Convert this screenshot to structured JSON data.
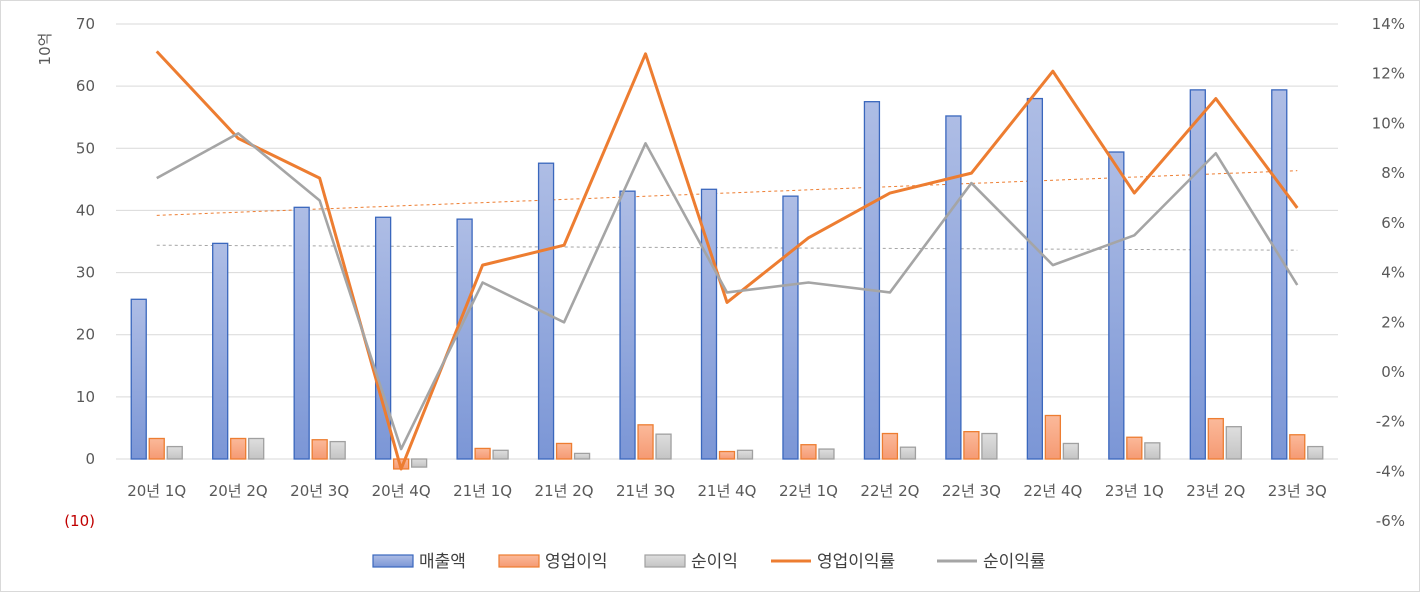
{
  "chart_data": {
    "type": "bar",
    "title": "",
    "ylabel": "10억",
    "categories": [
      "20년 1Q",
      "20년 2Q",
      "20년 3Q",
      "20년 4Q",
      "21년 1Q",
      "21년 2Q",
      "21년 3Q",
      "21년 4Q",
      "22년 1Q",
      "22년 2Q",
      "22년 3Q",
      "22년 4Q",
      "23년 1Q",
      "23년 2Q",
      "23년 3Q"
    ],
    "ylim": [
      -10,
      70
    ],
    "y_ticks": [
      "(10)",
      "0",
      "10",
      "20",
      "30",
      "40",
      "50",
      "60",
      "70"
    ],
    "y2lim": [
      -6,
      14
    ],
    "y2_ticks": [
      "-6%",
      "-4%",
      "-2%",
      "0%",
      "2%",
      "4%",
      "6%",
      "8%",
      "10%",
      "12%",
      "14%"
    ],
    "grid": true,
    "legend_position": "bottom",
    "series": [
      {
        "name": "매출액",
        "type": "bar",
        "axis": "left",
        "color": "#4472c4",
        "values": [
          25.7,
          34.7,
          40.5,
          38.9,
          38.6,
          47.6,
          43.1,
          43.4,
          42.3,
          57.5,
          55.2,
          58.0,
          49.4,
          59.4,
          59.4
        ]
      },
      {
        "name": "영업이익",
        "type": "bar",
        "axis": "left",
        "color": "#ed7d31",
        "values": [
          3.3,
          3.3,
          3.1,
          -1.6,
          1.7,
          2.5,
          5.5,
          1.2,
          2.3,
          4.1,
          4.4,
          7.0,
          3.5,
          6.5,
          3.9
        ]
      },
      {
        "name": "순이익",
        "type": "bar",
        "axis": "left",
        "color": "#a5a5a5",
        "values": [
          2.0,
          3.3,
          2.8,
          -1.3,
          1.4,
          0.9,
          4.0,
          1.4,
          1.6,
          1.9,
          4.1,
          2.5,
          2.6,
          5.2,
          2.0
        ]
      },
      {
        "name": "영업이익률",
        "type": "line",
        "axis": "right",
        "color": "#ed7d31",
        "values": [
          12.9,
          9.4,
          7.8,
          -3.9,
          4.3,
          5.1,
          12.8,
          2.8,
          5.4,
          7.2,
          8.0,
          12.1,
          7.2,
          11.0,
          6.6
        ]
      },
      {
        "name": "순이익률",
        "type": "line",
        "axis": "right",
        "color": "#a5a5a5",
        "values": [
          7.8,
          9.6,
          6.9,
          -3.1,
          3.6,
          2.0,
          9.2,
          3.2,
          3.6,
          3.2,
          7.6,
          4.3,
          5.5,
          8.8,
          3.5
        ]
      }
    ],
    "trendlines": [
      {
        "of": "영업이익률",
        "color": "#ed7d31",
        "style": "dotted",
        "values": [
          6.3,
          8.1
        ]
      },
      {
        "of": "순이익률",
        "color": "#a5a5a5",
        "style": "dotted",
        "values": [
          5.1,
          4.9
        ]
      }
    ]
  }
}
